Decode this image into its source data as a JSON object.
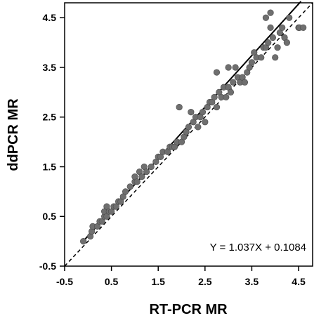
{
  "chart_data": {
    "type": "scatter",
    "title": "",
    "xlabel": "RT-PCR MR",
    "ylabel": "ddPCR  MR",
    "xlim": [
      -0.5,
      4.8
    ],
    "ylim": [
      -0.5,
      4.8
    ],
    "xticks": [
      -0.5,
      0.5,
      1.5,
      2.5,
      3.5,
      4.5
    ],
    "yticks": [
      -0.5,
      0.5,
      1.5,
      2.5,
      3.5,
      4.5
    ],
    "xtick_labels": [
      "-0.5",
      "0.5",
      "1.5",
      "2.5",
      "3.5",
      "4.5"
    ],
    "ytick_labels": [
      "-0.5",
      "0.5",
      "1.5",
      "2.5",
      "3.5",
      "4.5"
    ],
    "grid": false,
    "annotation": "Y = 1.037X + 0.1084",
    "fit_line": {
      "slope": 1.037,
      "intercept": 0.1084,
      "x_range": [
        -0.1,
        4.55
      ],
      "style": "solid"
    },
    "identity_line": {
      "slope": 1,
      "intercept": 0,
      "style": "dashed"
    },
    "marker_color": "#6f6f6f",
    "points": [
      [
        -0.1,
        0.0
      ],
      [
        0.05,
        0.1
      ],
      [
        0.08,
        0.2
      ],
      [
        0.1,
        0.3
      ],
      [
        0.2,
        0.3
      ],
      [
        0.25,
        0.4
      ],
      [
        0.3,
        0.4
      ],
      [
        0.35,
        0.5
      ],
      [
        0.35,
        0.6
      ],
      [
        0.4,
        0.5
      ],
      [
        0.4,
        0.7
      ],
      [
        0.45,
        0.6
      ],
      [
        0.5,
        0.6
      ],
      [
        0.55,
        0.7
      ],
      [
        0.6,
        0.7
      ],
      [
        0.65,
        0.8
      ],
      [
        0.7,
        0.8
      ],
      [
        0.75,
        0.9
      ],
      [
        0.8,
        1.0
      ],
      [
        0.9,
        1.1
      ],
      [
        1.0,
        1.2
      ],
      [
        1.0,
        1.3
      ],
      [
        1.05,
        1.2
      ],
      [
        1.1,
        1.4
      ],
      [
        1.15,
        1.3
      ],
      [
        1.2,
        1.5
      ],
      [
        1.25,
        1.4
      ],
      [
        1.35,
        1.5
      ],
      [
        1.45,
        1.6
      ],
      [
        1.5,
        1.7
      ],
      [
        1.55,
        1.7
      ],
      [
        1.6,
        1.8
      ],
      [
        1.7,
        1.8
      ],
      [
        1.75,
        1.9
      ],
      [
        1.8,
        1.9
      ],
      [
        1.85,
        1.9
      ],
      [
        1.9,
        2.0
      ],
      [
        1.95,
        2.7
      ],
      [
        2.0,
        2.0
      ],
      [
        2.05,
        2.1
      ],
      [
        2.1,
        2.2
      ],
      [
        2.15,
        2.3
      ],
      [
        2.2,
        2.6
      ],
      [
        2.25,
        2.4
      ],
      [
        2.3,
        2.5
      ],
      [
        2.35,
        2.3
      ],
      [
        2.4,
        2.5
      ],
      [
        2.45,
        2.6
      ],
      [
        2.5,
        2.4
      ],
      [
        2.55,
        2.7
      ],
      [
        2.6,
        2.8
      ],
      [
        2.65,
        2.8
      ],
      [
        2.7,
        2.9
      ],
      [
        2.75,
        2.7
      ],
      [
        2.8,
        3.0
      ],
      [
        2.85,
        2.9
      ],
      [
        2.9,
        3.1
      ],
      [
        2.95,
        2.9
      ],
      [
        3.0,
        3.1
      ],
      [
        3.0,
        3.5
      ],
      [
        3.05,
        3.0
      ],
      [
        3.1,
        3.2
      ],
      [
        3.15,
        3.5
      ],
      [
        3.2,
        3.3
      ],
      [
        3.25,
        3.2
      ],
      [
        3.3,
        3.3
      ],
      [
        3.35,
        3.2
      ],
      [
        3.4,
        3.4
      ],
      [
        3.45,
        3.5
      ],
      [
        3.5,
        3.6
      ],
      [
        3.55,
        3.8
      ],
      [
        3.6,
        3.7
      ],
      [
        3.7,
        3.7
      ],
      [
        3.75,
        3.9
      ],
      [
        3.8,
        3.9
      ],
      [
        3.85,
        4.0
      ],
      [
        3.9,
        4.6
      ],
      [
        3.95,
        4.1
      ],
      [
        4.0,
        3.7
      ],
      [
        4.05,
        3.9
      ],
      [
        4.1,
        4.2
      ],
      [
        4.15,
        4.3
      ],
      [
        4.2,
        4.1
      ],
      [
        4.25,
        4.0
      ],
      [
        4.3,
        4.5
      ],
      [
        4.5,
        4.3
      ],
      [
        4.52,
        4.3
      ],
      [
        3.8,
        4.5
      ],
      [
        2.75,
        3.4
      ],
      [
        3.9,
        4.3
      ],
      [
        4.6,
        4.3
      ]
    ]
  }
}
